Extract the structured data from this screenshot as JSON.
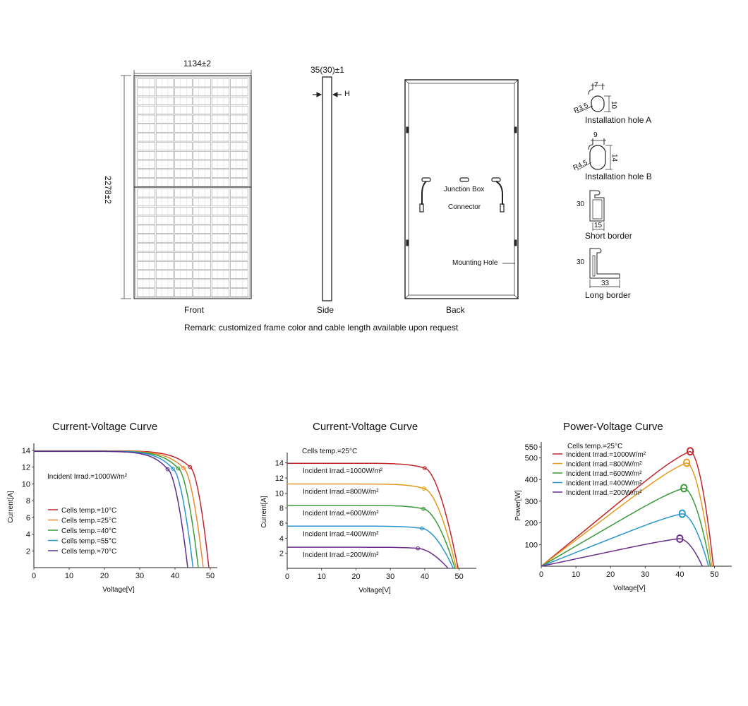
{
  "drawing": {
    "front": {
      "label": "Front",
      "width_dim": "1134±2",
      "height_dim": "2278±2"
    },
    "side": {
      "label": "Side",
      "thickness_dim": "35(30)±1",
      "h_marker": "H"
    },
    "back": {
      "label": "Back",
      "junction_box": "Junction Box",
      "connector": "Connector",
      "mounting_hole": "Mounting Hole"
    },
    "holes": {
      "a": {
        "label": "Installation hole A",
        "w": "7",
        "h": "10",
        "r": "R3.5"
      },
      "b": {
        "label": "Installation hole B",
        "w": "9",
        "h": "14",
        "r": "R4.5"
      }
    },
    "borders": {
      "short": {
        "label": "Short border",
        "h": "30",
        "w": "15"
      },
      "long": {
        "label": "Long border",
        "h": "30",
        "w": "33"
      }
    },
    "remark": "Remark: customized frame color and cable length available upon request"
  },
  "chart_data": [
    {
      "type": "line",
      "title": "Current-Voltage Curve",
      "xlabel": "Voltage[V]",
      "ylabel": "Current[A]",
      "xlim": [
        0,
        52
      ],
      "ylim": [
        0,
        14.5
      ],
      "xticks": [
        0,
        10,
        20,
        30,
        40,
        50
      ],
      "yticks": [
        2,
        4,
        6,
        8,
        10,
        12,
        14
      ],
      "annotation": "Incident Irrad.=1000W/m²",
      "legend_position": "bottom-left",
      "series": [
        {
          "name": "Cells temp.=10°C",
          "color": "#c0272d",
          "isc": 13.95,
          "voc": 49.6,
          "vmp": 44.3,
          "imp": 12.0
        },
        {
          "name": "Cells temp.=25°C",
          "color": "#ea8a2c",
          "isc": 13.93,
          "voc": 48.0,
          "vmp": 42.4,
          "imp": 11.9
        },
        {
          "name": "Cells temp.=40°C",
          "color": "#3a9a3a",
          "isc": 13.91,
          "voc": 46.6,
          "vmp": 40.9,
          "imp": 11.85
        },
        {
          "name": "Cells temp.=55°C",
          "color": "#2a95cc",
          "isc": 13.9,
          "voc": 45.1,
          "vmp": 39.4,
          "imp": 11.8
        },
        {
          "name": "Cells temp.=70°C",
          "color": "#5c2d8c",
          "isc": 13.88,
          "voc": 43.6,
          "vmp": 37.9,
          "imp": 11.75
        }
      ]
    },
    {
      "type": "line",
      "title": "Current-Voltage Curve",
      "xlabel": "Voltage[V]",
      "ylabel": "Current[A]",
      "xlim": [
        0,
        55
      ],
      "ylim": [
        0,
        15
      ],
      "xticks": [
        0,
        10,
        20,
        30,
        40,
        50
      ],
      "yticks": [
        2,
        4,
        6,
        8,
        10,
        12,
        14
      ],
      "annotation": "Cells temp.=25°C",
      "series": [
        {
          "name": "Incident Irrad.=1000W/m²",
          "color": "#c0272d",
          "isc": 13.95,
          "voc": 49.7,
          "vmp": 40.0,
          "imp": 13.3
        },
        {
          "name": "Incident Irrad.=800W/m²",
          "color": "#e39b20",
          "isc": 11.2,
          "voc": 49.2,
          "vmp": 39.8,
          "imp": 10.6
        },
        {
          "name": "Incident Irrad.=600W/m²",
          "color": "#3a9a3a",
          "isc": 8.35,
          "voc": 48.8,
          "vmp": 39.6,
          "imp": 7.9
        },
        {
          "name": "Incident Irrad.=400W/m²",
          "color": "#2a95cc",
          "isc": 5.6,
          "voc": 48.3,
          "vmp": 39.2,
          "imp": 5.3
        },
        {
          "name": "Incident Irrad.=200W/m²",
          "color": "#6a2d8c",
          "isc": 2.8,
          "voc": 46.8,
          "vmp": 38.0,
          "imp": 2.65
        }
      ]
    },
    {
      "type": "line",
      "title": "Power-Voltage Curve",
      "xlabel": "Voltage[V]",
      "ylabel": "Power[W]",
      "xlim": [
        0,
        55
      ],
      "ylim": [
        0,
        560
      ],
      "xticks": [
        0,
        10,
        20,
        30,
        40,
        50
      ],
      "yticks": [
        100,
        200,
        300,
        400,
        500,
        550
      ],
      "annotation": "Cells temp.=25°C",
      "legend_position": "top-left",
      "series": [
        {
          "name": "Incident Irrad.=1000W/m²",
          "color": "#c0272d",
          "voc": 49.7,
          "vmp": 43.0,
          "pmax": 530
        },
        {
          "name": "Incident Irrad.=800W/m²",
          "color": "#e39b20",
          "voc": 49.2,
          "vmp": 42.0,
          "pmax": 477
        },
        {
          "name": "Incident Irrad.=600W/m²",
          "color": "#3a9a3a",
          "voc": 48.8,
          "vmp": 41.2,
          "pmax": 360
        },
        {
          "name": "Incident Irrad.=400W/m²",
          "color": "#2a95cc",
          "voc": 48.3,
          "vmp": 40.7,
          "pmax": 242
        },
        {
          "name": "Incident Irrad.=200W/m²",
          "color": "#6a2d8c",
          "voc": 46.5,
          "vmp": 40.0,
          "pmax": 127
        }
      ]
    }
  ]
}
